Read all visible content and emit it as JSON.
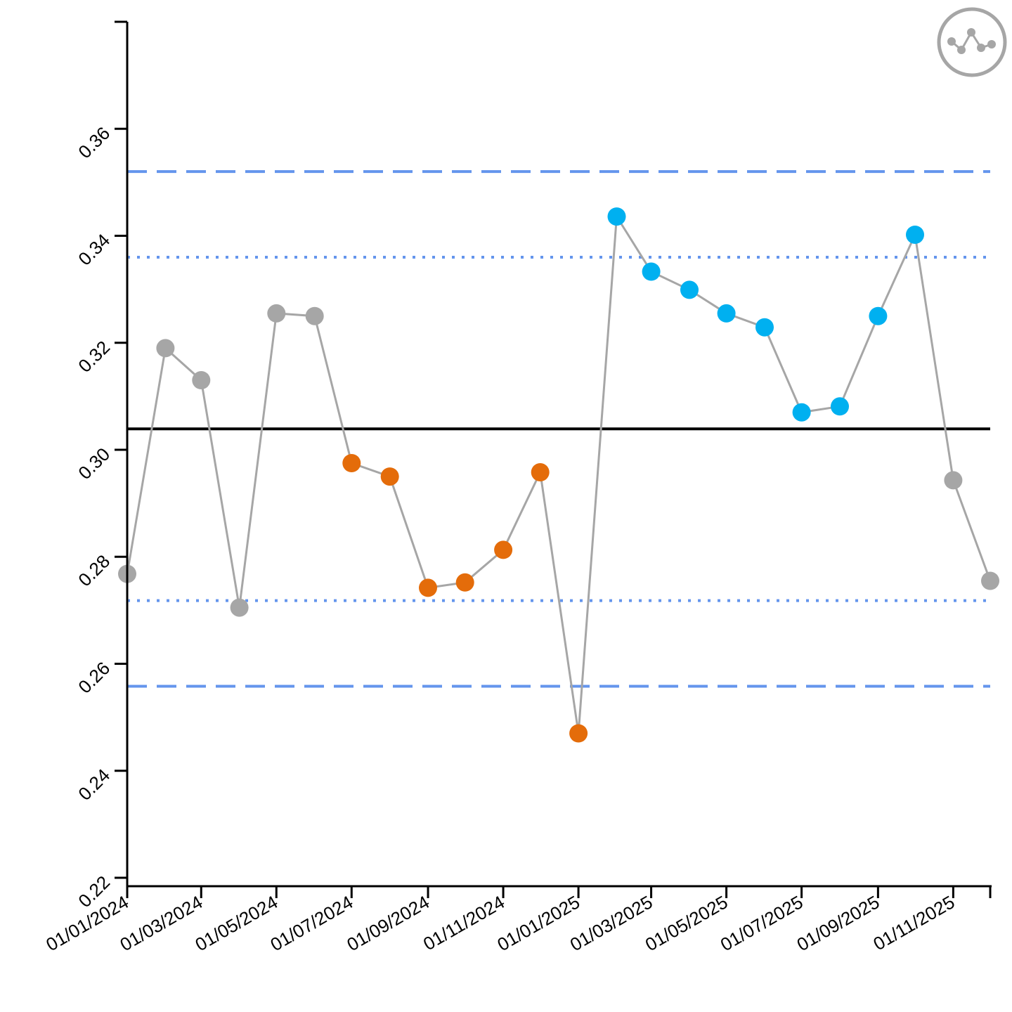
{
  "chart_data": {
    "type": "line",
    "title": "",
    "xlabel": "",
    "ylabel": "",
    "ylim": [
      0.22,
      0.38
    ],
    "y_ticks": [
      0.22,
      0.24,
      0.26,
      0.28,
      0.3,
      0.32,
      0.34,
      0.36
    ],
    "y_tick_labels": [
      "0.22",
      "0.24",
      "0.26",
      "0.28",
      "0.30",
      "0.32",
      "0.34",
      "0.36"
    ],
    "xlim": [
      "2024-01-01",
      "2025-12-01"
    ],
    "x_ticks": [
      "2024-01-01",
      "2024-03-01",
      "2024-05-01",
      "2024-07-01",
      "2024-09-01",
      "2024-11-01",
      "2025-01-01",
      "2025-03-01",
      "2025-05-01",
      "2025-07-01",
      "2025-09-01",
      "2025-11-01",
      "2025-12-01"
    ],
    "x_tick_labels": [
      "01/01/2024",
      "01/03/2024",
      "01/05/2024",
      "01/07/2024",
      "01/09/2024",
      "01/11/2024",
      "01/01/2025",
      "01/03/2025",
      "01/05/2025",
      "01/07/2025",
      "01/09/2025",
      "01/11/2025",
      ""
    ],
    "series": [
      {
        "x": [
          "2024-01-01",
          "2024-02-01",
          "2024-03-01",
          "2024-04-01",
          "2024-05-01",
          "2024-06-01",
          "2024-07-01",
          "2024-08-01",
          "2024-09-01",
          "2024-10-01",
          "2024-11-01",
          "2024-12-01",
          "2025-01-01",
          "2025-02-01",
          "2025-03-01",
          "2025-04-01",
          "2025-05-01",
          "2025-06-01",
          "2025-07-01",
          "2025-08-01",
          "2025-09-01",
          "2025-10-01",
          "2025-11-01",
          "2025-12-01"
        ],
        "values": [
          0.2768,
          0.319,
          0.313,
          0.2705,
          0.3255,
          0.325,
          0.2975,
          0.295,
          0.2742,
          0.2752,
          0.2813,
          0.2958,
          0.247,
          0.3436,
          0.3333,
          0.3299,
          0.3255,
          0.3229,
          0.307,
          0.3081,
          0.325,
          0.3402,
          0.2943,
          0.2755
        ],
        "point_categories": [
          "common",
          "common",
          "common",
          "common",
          "common",
          "common",
          "low",
          "low",
          "low",
          "low",
          "low",
          "low",
          "low",
          "high",
          "high",
          "high",
          "high",
          "high",
          "high",
          "high",
          "high",
          "high",
          "common",
          "common"
        ]
      }
    ],
    "reference_lines": [
      {
        "kind": "mean",
        "value": 0.3039,
        "style": "solid",
        "color": "#000000"
      },
      {
        "kind": "upper_control_limit",
        "value": 0.352,
        "style": "dashed",
        "color": "#6495ED"
      },
      {
        "kind": "lower_control_limit",
        "value": 0.2558,
        "style": "dashed",
        "color": "#6495ED"
      },
      {
        "kind": "upper_warning_limit",
        "value": 0.336,
        "style": "dotted",
        "color": "#6495ED"
      },
      {
        "kind": "lower_warning_limit",
        "value": 0.2718,
        "style": "dotted",
        "color": "#6495ED"
      }
    ],
    "colors": {
      "common": "#A6A6A6",
      "low": "#E46C0A",
      "high": "#00B0F0",
      "line": "#A6A6A6",
      "axis": "#000000",
      "limits": "#6495ED"
    },
    "grid": false,
    "legend": "none"
  },
  "icon": {
    "name": "spc-variation-icon",
    "color": "#A6A6A6"
  }
}
